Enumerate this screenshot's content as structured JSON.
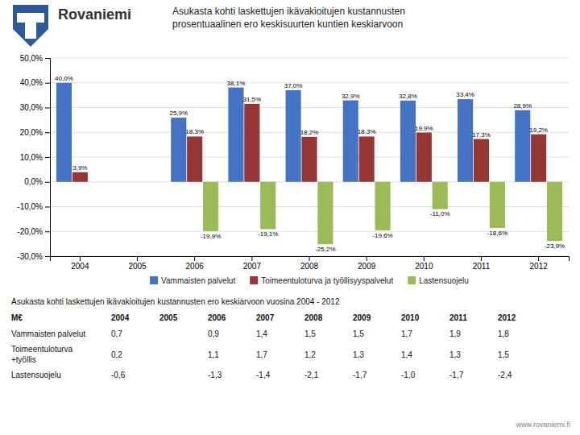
{
  "chart_data": {
    "type": "bar",
    "title": [
      "Asukasta kohti laskettujen ikävakioitujen kustannusten",
      "prosentuaalinen ero keskisuurten kuntien keskiarvoon"
    ],
    "subtitle": "Asukasta kohti laskettujen ikävakioitujen kustannusten ero keskiarvoon vuosina 2004 - 2012",
    "annotations": [
      "Rovaniemi",
      "www.rovaniemi.fi"
    ],
    "categories": [
      "2004",
      "2005",
      "2006",
      "2007",
      "2008",
      "2009",
      "2010",
      "2011",
      "2012"
    ],
    "series": [
      {
        "name": "Vammaisten palvelut",
        "color": "#4472C4",
        "values": [
          40.0,
          null,
          25.9,
          38.1,
          37.0,
          32.9,
          32.8,
          33.4,
          28.9
        ],
        "value_labels": [
          "40,0%",
          null,
          "25,9%",
          "38,1%",
          "37,0%",
          "32,9%",
          "32,8%",
          "33,4%",
          "28,9%"
        ]
      },
      {
        "name": "Toimeentuloturva ja työllisyyspalvelut",
        "color": "#943634",
        "values": [
          3.9,
          null,
          18.3,
          31.5,
          18.2,
          18.3,
          19.9,
          17.3,
          19.2
        ],
        "value_labels": [
          "3,9%",
          null,
          "18,3%",
          "31,5%",
          "18,2%",
          "18,3%",
          "19,9%",
          "17,3%",
          "19,2%"
        ]
      },
      {
        "name": "Lastensuojelu",
        "color": "#9BBB59",
        "values": [
          0.0,
          null,
          -19.9,
          -19.1,
          -25.2,
          -19.6,
          -11.0,
          -18.6,
          -23.9
        ],
        "value_labels": [
          null,
          null,
          "-19,9%",
          "-19,1%",
          "-25,2%",
          "-19,6%",
          "-11,0%",
          "-18,6%",
          "-23,9%"
        ]
      }
    ],
    "ylim": [
      -30,
      50
    ],
    "yticks": [
      {
        "value": -30,
        "label": "-30,0%"
      },
      {
        "value": -20,
        "label": "-20,0%"
      },
      {
        "value": -10,
        "label": "-10,0%"
      },
      {
        "value": 0,
        "label": "0,0%"
      },
      {
        "value": 10,
        "label": "10,0%"
      },
      {
        "value": 20,
        "label": "20,0%"
      },
      {
        "value": 30,
        "label": "30,0%"
      },
      {
        "value": 40,
        "label": "40,0%"
      },
      {
        "value": 50,
        "label": "50,0%"
      }
    ],
    "grid": true,
    "data_labels": true,
    "legend": "bottom",
    "table": {
      "columns": [
        "M€",
        "2004",
        "2005",
        "2006",
        "2007",
        "2008",
        "2009",
        "2010",
        "2011",
        "2012"
      ],
      "rows": [
        {
          "label": "Vammaisten palvelut",
          "cells": [
            "0,7",
            null,
            "0,9",
            "1,4",
            "1,5",
            "1,5",
            "1,7",
            "1,9",
            "1,8"
          ]
        },
        {
          "label": [
            "Toimeentuloturva",
            "+työllis"
          ],
          "cells": [
            "0,2",
            null,
            "1,1",
            "1,7",
            "1,2",
            "1,3",
            "1,4",
            "1,3",
            "1,5"
          ]
        },
        {
          "label": "Lastensuojelu",
          "cells": [
            "-0,6",
            null,
            "-1,3",
            "-1,4",
            "-2,1",
            "-1,7",
            "-1,0",
            "-1,7",
            "-2,4"
          ]
        }
      ]
    }
  }
}
